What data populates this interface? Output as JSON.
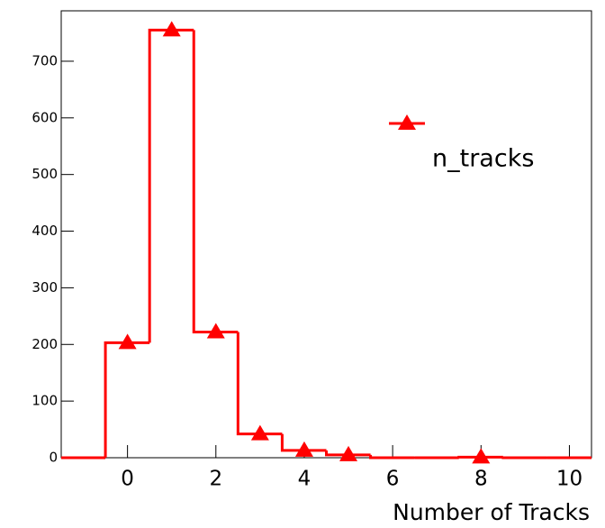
{
  "chart_data": {
    "type": "histogram",
    "xlabel": "Number of Tracks",
    "bins": [
      -1.5,
      -0.5,
      0.5,
      1.5,
      2.5,
      3.5,
      4.5,
      5.5,
      6.5,
      7.5,
      8.5,
      9.5,
      10.5
    ],
    "counts": [
      0,
      203,
      755,
      222,
      42,
      13,
      5,
      0,
      0,
      1,
      0,
      0
    ],
    "series_name": "n_tracks",
    "color": "#ff0000",
    "xlim": [
      -1.5,
      10.5
    ],
    "xticks": [
      0,
      2,
      4,
      6,
      8,
      10
    ],
    "ylim": [
      0,
      789
    ],
    "yticks": [
      0,
      100,
      200,
      300,
      400,
      500,
      600,
      700
    ],
    "grid": false,
    "legend": "upper right"
  }
}
